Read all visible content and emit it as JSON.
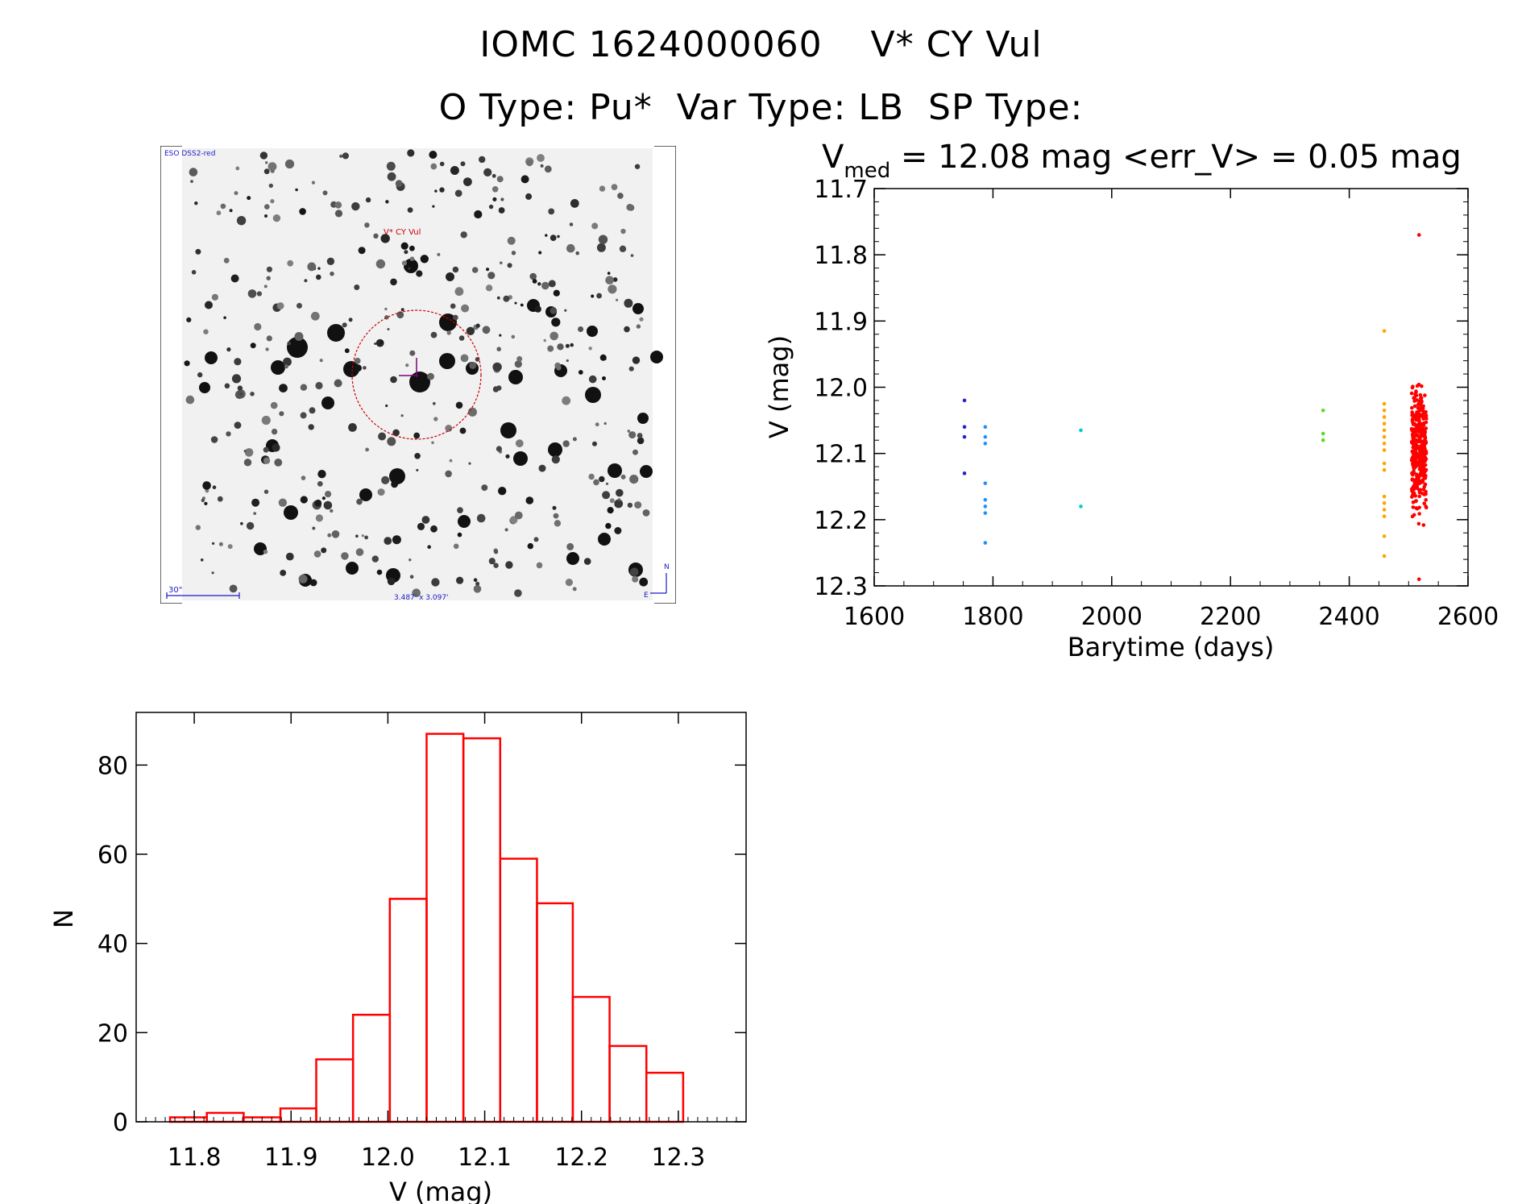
{
  "header": {
    "title_line1": "IOMC 1624000060    V* CY Vul",
    "title_line2": "O Type: Pu*  Var Type: LB  SP Type:"
  },
  "finder_chart": {
    "survey_label": "ESO DSS2-red",
    "target_label": "V* CY Vul",
    "scale_label": "30\"",
    "fov_label": "3.487' x 3.097'",
    "north_label": "N",
    "east_label": "E",
    "colors": {
      "target": "#cc0000",
      "cross": "#800080",
      "annotation": "#1a1acc"
    }
  },
  "chart_data": [
    {
      "type": "scatter",
      "title_main": "V",
      "title_sub": "med",
      "title_rest": " = 12.08 mag <err_V> = 0.05 mag",
      "xlabel": "Barytime (days)",
      "ylabel": "V (mag)",
      "xlim": [
        1600,
        2600
      ],
      "ylim": [
        11.7,
        12.3
      ],
      "y_inverted": true,
      "xticks": [
        "1600",
        "1800",
        "2000",
        "2200",
        "2400",
        "2600"
      ],
      "yticks": [
        "11.7",
        "11.8",
        "11.9",
        "12.0",
        "12.1",
        "12.2",
        "12.3"
      ],
      "series": [
        {
          "color": "#2222cc",
          "points": [
            [
              1752,
              12.02
            ],
            [
              1752,
              12.06
            ],
            [
              1752,
              12.075
            ],
            [
              1752,
              12.13
            ]
          ]
        },
        {
          "color": "#1e90ff",
          "points": [
            [
              1787,
              12.06
            ],
            [
              1787,
              12.075
            ],
            [
              1787,
              12.085
            ],
            [
              1787,
              12.145
            ],
            [
              1787,
              12.17
            ],
            [
              1787,
              12.18
            ],
            [
              1787,
              12.19
            ],
            [
              1787,
              12.235
            ]
          ]
        },
        {
          "color": "#00cccc",
          "points": [
            [
              1948,
              12.065
            ],
            [
              1948,
              12.18
            ]
          ]
        },
        {
          "color": "#55dd22",
          "points": [
            [
              2356,
              12.035
            ],
            [
              2356,
              12.07
            ],
            [
              2356,
              12.08
            ]
          ]
        },
        {
          "color": "#ffa500",
          "points": [
            [
              2459,
              11.915
            ],
            [
              2459,
              12.025
            ],
            [
              2459,
              12.035
            ],
            [
              2459,
              12.045
            ],
            [
              2459,
              12.055
            ],
            [
              2459,
              12.065
            ],
            [
              2459,
              12.075
            ],
            [
              2459,
              12.085
            ],
            [
              2459,
              12.095
            ],
            [
              2459,
              12.115
            ],
            [
              2459,
              12.125
            ],
            [
              2459,
              12.165
            ],
            [
              2459,
              12.175
            ],
            [
              2459,
              12.185
            ],
            [
              2459,
              12.195
            ],
            [
              2459,
              12.225
            ],
            [
              2459,
              12.255
            ]
          ]
        },
        {
          "color": "#ff0000",
          "cloud": {
            "x_range": [
              2505,
              2530
            ],
            "y_center": 12.09,
            "y_spread": 0.06,
            "count": 380,
            "y_min": 11.77,
            "y_max": 12.29
          }
        }
      ]
    },
    {
      "type": "bar",
      "xlabel": "V (mag)",
      "ylabel": "N",
      "xlim": [
        11.74,
        12.37
      ],
      "ylim": [
        0,
        90
      ],
      "xticks": [
        "11.8",
        "11.9",
        "12.0",
        "12.1",
        "12.2",
        "12.3"
      ],
      "yticks": [
        "0",
        "20",
        "40",
        "60",
        "80"
      ],
      "bin_edges": [
        11.775,
        11.813,
        11.851,
        11.889,
        11.926,
        11.964,
        12.002,
        12.04,
        12.078,
        12.116,
        12.154,
        12.191,
        12.229,
        12.267,
        12.305
      ],
      "values": [
        1,
        2,
        1,
        3,
        14,
        24,
        50,
        87,
        86,
        59,
        49,
        28,
        17,
        11
      ],
      "color": "#ff0000"
    }
  ]
}
